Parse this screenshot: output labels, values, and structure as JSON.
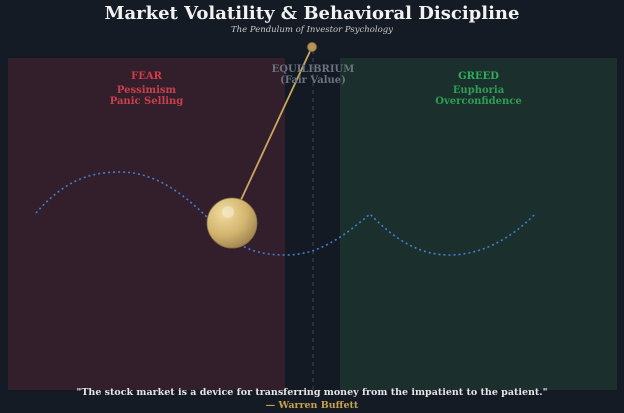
{
  "title": "Market Volatility & Behavioral Discipline",
  "subtitle": "The Pendulum of Investor Psychology",
  "zones": {
    "fear": {
      "title": "FEAR",
      "line1": "Pessimism",
      "line2": "Panic Selling",
      "color": "#d63a4a"
    },
    "equilibrium": {
      "title": "EQUILIBRIUM",
      "line2": "(Fair Value)",
      "color": "#6b7280"
    },
    "greed": {
      "title": "GREED",
      "line1": "Euphoria",
      "line2": "Overconfidence",
      "color": "#2fae5a"
    }
  },
  "quote": "\"The stock market is a device for transferring money from the impatient to the patient.\"",
  "author": "— Warren Buffett"
}
